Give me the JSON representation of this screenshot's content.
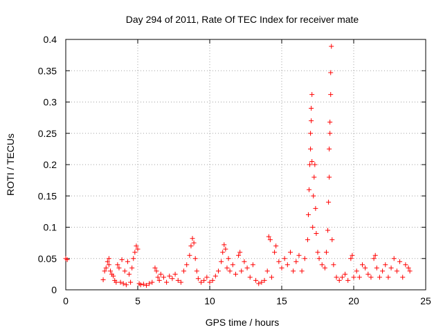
{
  "chart_data": {
    "type": "scatter",
    "title": "Day 294 of 2011, Rate Of TEC Index for receiver mate",
    "xlabel": "GPS time / hours",
    "ylabel": "ROTI / TECUs",
    "xlim": [
      0,
      25
    ],
    "ylim": [
      0,
      0.4
    ],
    "xticks": [
      "0",
      "5",
      "10",
      "15",
      "20",
      "25"
    ],
    "yticks": [
      "0",
      "0.05",
      "0.1",
      "0.15",
      "0.2",
      "0.25",
      "0.3",
      "0.35",
      "0.4"
    ],
    "grid": true,
    "marker": "+",
    "series": [
      {
        "color": "#ff0000",
        "points": [
          [
            0.0,
            0.05
          ],
          [
            0.1,
            0.048
          ],
          [
            2.6,
            0.016
          ],
          [
            2.7,
            0.03
          ],
          [
            2.8,
            0.035
          ],
          [
            2.9,
            0.045
          ],
          [
            3.0,
            0.05
          ],
          [
            3.0,
            0.04
          ],
          [
            3.1,
            0.03
          ],
          [
            3.2,
            0.025
          ],
          [
            3.3,
            0.022
          ],
          [
            3.4,
            0.015
          ],
          [
            3.5,
            0.012
          ],
          [
            3.6,
            0.04
          ],
          [
            3.7,
            0.035
          ],
          [
            3.8,
            0.012
          ],
          [
            3.9,
            0.048
          ],
          [
            4.0,
            0.01
          ],
          [
            4.1,
            0.03
          ],
          [
            4.2,
            0.008
          ],
          [
            4.3,
            0.045
          ],
          [
            4.4,
            0.025
          ],
          [
            4.5,
            0.012
          ],
          [
            4.6,
            0.035
          ],
          [
            4.7,
            0.05
          ],
          [
            4.8,
            0.06
          ],
          [
            4.9,
            0.07
          ],
          [
            5.0,
            0.065
          ],
          [
            5.1,
            0.01
          ],
          [
            5.2,
            0.008
          ],
          [
            5.4,
            0.009
          ],
          [
            5.6,
            0.007
          ],
          [
            5.8,
            0.01
          ],
          [
            6.0,
            0.012
          ],
          [
            6.2,
            0.035
          ],
          [
            6.3,
            0.03
          ],
          [
            6.4,
            0.02
          ],
          [
            6.5,
            0.015
          ],
          [
            6.6,
            0.025
          ],
          [
            6.8,
            0.02
          ],
          [
            7.0,
            0.012
          ],
          [
            7.2,
            0.022
          ],
          [
            7.4,
            0.018
          ],
          [
            7.6,
            0.025
          ],
          [
            7.8,
            0.015
          ],
          [
            8.0,
            0.012
          ],
          [
            8.2,
            0.03
          ],
          [
            8.4,
            0.04
          ],
          [
            8.6,
            0.055
          ],
          [
            8.7,
            0.07
          ],
          [
            8.8,
            0.082
          ],
          [
            8.9,
            0.075
          ],
          [
            9.0,
            0.05
          ],
          [
            9.1,
            0.03
          ],
          [
            9.2,
            0.018
          ],
          [
            9.4,
            0.012
          ],
          [
            9.6,
            0.015
          ],
          [
            9.8,
            0.02
          ],
          [
            10.0,
            0.012
          ],
          [
            10.2,
            0.015
          ],
          [
            10.4,
            0.022
          ],
          [
            10.6,
            0.03
          ],
          [
            10.8,
            0.045
          ],
          [
            10.9,
            0.06
          ],
          [
            11.0,
            0.072
          ],
          [
            11.1,
            0.065
          ],
          [
            11.2,
            0.035
          ],
          [
            11.3,
            0.05
          ],
          [
            11.4,
            0.03
          ],
          [
            11.6,
            0.04
          ],
          [
            11.8,
            0.025
          ],
          [
            12.0,
            0.055
          ],
          [
            12.1,
            0.06
          ],
          [
            12.2,
            0.03
          ],
          [
            12.4,
            0.045
          ],
          [
            12.6,
            0.035
          ],
          [
            12.8,
            0.02
          ],
          [
            13.0,
            0.04
          ],
          [
            13.2,
            0.015
          ],
          [
            13.4,
            0.01
          ],
          [
            13.6,
            0.012
          ],
          [
            13.8,
            0.015
          ],
          [
            14.0,
            0.03
          ],
          [
            14.1,
            0.085
          ],
          [
            14.2,
            0.08
          ],
          [
            14.3,
            0.02
          ],
          [
            14.5,
            0.06
          ],
          [
            14.6,
            0.07
          ],
          [
            14.8,
            0.045
          ],
          [
            15.0,
            0.035
          ],
          [
            15.2,
            0.05
          ],
          [
            15.4,
            0.04
          ],
          [
            15.6,
            0.06
          ],
          [
            15.8,
            0.03
          ],
          [
            16.0,
            0.045
          ],
          [
            16.2,
            0.055
          ],
          [
            16.4,
            0.03
          ],
          [
            16.6,
            0.05
          ],
          [
            16.8,
            0.08
          ],
          [
            16.85,
            0.12
          ],
          [
            16.9,
            0.16
          ],
          [
            16.95,
            0.2
          ],
          [
            17.0,
            0.225
          ],
          [
            17.0,
            0.25
          ],
          [
            17.05,
            0.27
          ],
          [
            17.05,
            0.29
          ],
          [
            17.1,
            0.312
          ],
          [
            17.1,
            0.205
          ],
          [
            17.15,
            0.1
          ],
          [
            17.2,
            0.15
          ],
          [
            17.25,
            0.18
          ],
          [
            17.3,
            0.2
          ],
          [
            17.35,
            0.13
          ],
          [
            17.4,
            0.09
          ],
          [
            17.5,
            0.06
          ],
          [
            17.6,
            0.05
          ],
          [
            17.8,
            0.04
          ],
          [
            18.0,
            0.035
          ],
          [
            18.1,
            0.06
          ],
          [
            18.2,
            0.095
          ],
          [
            18.25,
            0.14
          ],
          [
            18.3,
            0.18
          ],
          [
            18.3,
            0.225
          ],
          [
            18.35,
            0.25
          ],
          [
            18.35,
            0.268
          ],
          [
            18.4,
            0.312
          ],
          [
            18.4,
            0.347
          ],
          [
            18.45,
            0.389
          ],
          [
            18.5,
            0.08
          ],
          [
            18.6,
            0.04
          ],
          [
            18.8,
            0.02
          ],
          [
            19.0,
            0.015
          ],
          [
            19.2,
            0.02
          ],
          [
            19.4,
            0.025
          ],
          [
            19.6,
            0.015
          ],
          [
            19.8,
            0.05
          ],
          [
            19.9,
            0.055
          ],
          [
            20.0,
            0.02
          ],
          [
            20.2,
            0.03
          ],
          [
            20.4,
            0.02
          ],
          [
            20.6,
            0.04
          ],
          [
            20.8,
            0.035
          ],
          [
            21.0,
            0.025
          ],
          [
            21.2,
            0.02
          ],
          [
            21.4,
            0.05
          ],
          [
            21.5,
            0.055
          ],
          [
            21.6,
            0.035
          ],
          [
            21.8,
            0.02
          ],
          [
            22.0,
            0.03
          ],
          [
            22.2,
            0.04
          ],
          [
            22.4,
            0.02
          ],
          [
            22.6,
            0.035
          ],
          [
            22.8,
            0.05
          ],
          [
            23.0,
            0.03
          ],
          [
            23.2,
            0.045
          ],
          [
            23.4,
            0.02
          ],
          [
            23.6,
            0.04
          ],
          [
            23.8,
            0.035
          ],
          [
            23.9,
            0.03
          ]
        ]
      }
    ]
  }
}
